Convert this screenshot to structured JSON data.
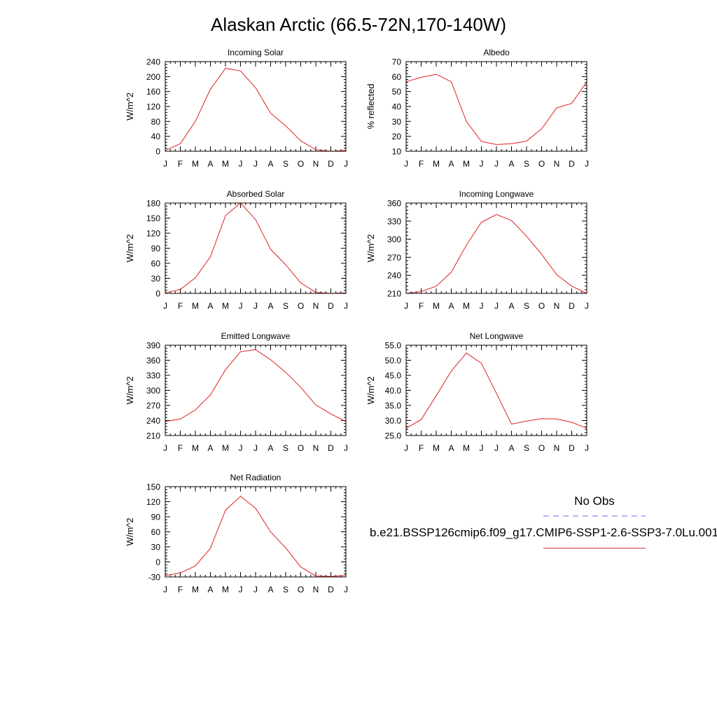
{
  "title": "Alaskan Arctic (66.5-72N,170-140W)",
  "legend": {
    "obs_label": "No Obs",
    "obs_color": "#6a6aee",
    "model_label": "b.e21.BSSP126cmip6.f09_g17.CMIP6-SSP1-2.6-SSP3-7.0Lu.001",
    "model_color": "#e02020"
  },
  "chart_data": [
    {
      "type": "line",
      "title": "Incoming Solar",
      "ylabel": "W/m^2",
      "x": [
        "J",
        "F",
        "M",
        "A",
        "M",
        "J",
        "J",
        "A",
        "S",
        "O",
        "N",
        "D",
        "J"
      ],
      "ylim": [
        0,
        240
      ],
      "yticks": [
        0,
        40,
        80,
        120,
        160,
        200,
        240
      ],
      "ytick_labels": [
        "0",
        "40",
        "80",
        "120",
        "160",
        "200",
        "240"
      ],
      "series": [
        {
          "values": [
            2,
            20,
            80,
            166,
            222,
            215,
            170,
            102,
            68,
            28,
            4,
            0,
            2
          ]
        }
      ]
    },
    {
      "type": "line",
      "title": "Albedo",
      "ylabel": "% reflected",
      "x": [
        "J",
        "F",
        "M",
        "A",
        "M",
        "J",
        "J",
        "A",
        "S",
        "O",
        "N",
        "D",
        "J"
      ],
      "ylim": [
        10,
        70
      ],
      "yticks": [
        10,
        20,
        30,
        40,
        50,
        60,
        70
      ],
      "ytick_labels": [
        "10",
        "20",
        "30",
        "40",
        "50",
        "60",
        "70"
      ],
      "series": [
        {
          "values": [
            56.5,
            59.5,
            61.5,
            56.5,
            30,
            16.5,
            14.5,
            15,
            16.8,
            25,
            39,
            42,
            56.5
          ]
        }
      ]
    },
    {
      "type": "line",
      "title": "Absorbed Solar",
      "ylabel": "W/m^2",
      "x": [
        "J",
        "F",
        "M",
        "A",
        "M",
        "J",
        "J",
        "A",
        "S",
        "O",
        "N",
        "D",
        "J"
      ],
      "ylim": [
        0,
        180
      ],
      "yticks": [
        0,
        30,
        60,
        90,
        120,
        150,
        180
      ],
      "ytick_labels": [
        "0",
        "30",
        "60",
        "90",
        "120",
        "150",
        "180"
      ],
      "series": [
        {
          "values": [
            1,
            8,
            31,
            73,
            155,
            180,
            147,
            88,
            57,
            21,
            2,
            0,
            1
          ]
        }
      ]
    },
    {
      "type": "line",
      "title": "Incoming Longwave",
      "ylabel": "W/m^2",
      "x": [
        "J",
        "F",
        "M",
        "A",
        "M",
        "J",
        "J",
        "A",
        "S",
        "O",
        "N",
        "D",
        "J"
      ],
      "ylim": [
        210,
        360
      ],
      "yticks": [
        210,
        240,
        270,
        300,
        330,
        360
      ],
      "ytick_labels": [
        "210",
        "240",
        "270",
        "300",
        "330",
        "360"
      ],
      "series": [
        {
          "values": [
            210,
            213,
            222,
            245,
            290,
            328,
            341,
            331,
            305,
            275,
            241,
            222,
            210
          ]
        }
      ]
    },
    {
      "type": "line",
      "title": "Emitted Longwave",
      "ylabel": "W/m^2",
      "x": [
        "J",
        "F",
        "M",
        "A",
        "M",
        "J",
        "J",
        "A",
        "S",
        "O",
        "N",
        "D",
        "J"
      ],
      "ylim": [
        210,
        390
      ],
      "yticks": [
        210,
        240,
        270,
        300,
        330,
        360,
        390
      ],
      "ytick_labels": [
        "210",
        "240",
        "270",
        "300",
        "330",
        "360",
        "390"
      ],
      "series": [
        {
          "values": [
            238,
            243,
            261,
            291,
            341,
            377,
            381,
            361,
            336,
            306,
            271,
            253,
            238
          ]
        }
      ]
    },
    {
      "type": "line",
      "title": "Net Longwave",
      "ylabel": "W/m^2",
      "x": [
        "J",
        "F",
        "M",
        "A",
        "M",
        "J",
        "J",
        "A",
        "S",
        "O",
        "N",
        "D",
        "J"
      ],
      "ylim": [
        25,
        55
      ],
      "yticks": [
        25,
        30,
        35,
        40,
        45,
        50,
        55
      ],
      "ytick_labels": [
        "25.0",
        "30.0",
        "35.0",
        "40.0",
        "45.0",
        "50.0",
        "55.0"
      ],
      "series": [
        {
          "values": [
            27.4,
            30.3,
            38.2,
            46.4,
            52.4,
            49,
            39,
            28.8,
            29.8,
            30.6,
            30.5,
            29.4,
            27.4
          ]
        }
      ]
    },
    {
      "type": "line",
      "title": "Net Radiation",
      "ylabel": "W/m^2",
      "x": [
        "J",
        "F",
        "M",
        "A",
        "M",
        "J",
        "J",
        "A",
        "S",
        "O",
        "N",
        "D",
        "J"
      ],
      "ylim": [
        -30,
        150
      ],
      "yticks": [
        -30,
        0,
        30,
        60,
        90,
        120,
        150
      ],
      "ytick_labels": [
        "-30",
        "0",
        "30",
        "60",
        "90",
        "120",
        "150"
      ],
      "series": [
        {
          "values": [
            -27,
            -22,
            -8,
            27,
            103,
            131,
            107,
            60,
            28,
            -10,
            -28,
            -29,
            -27
          ]
        }
      ]
    }
  ]
}
